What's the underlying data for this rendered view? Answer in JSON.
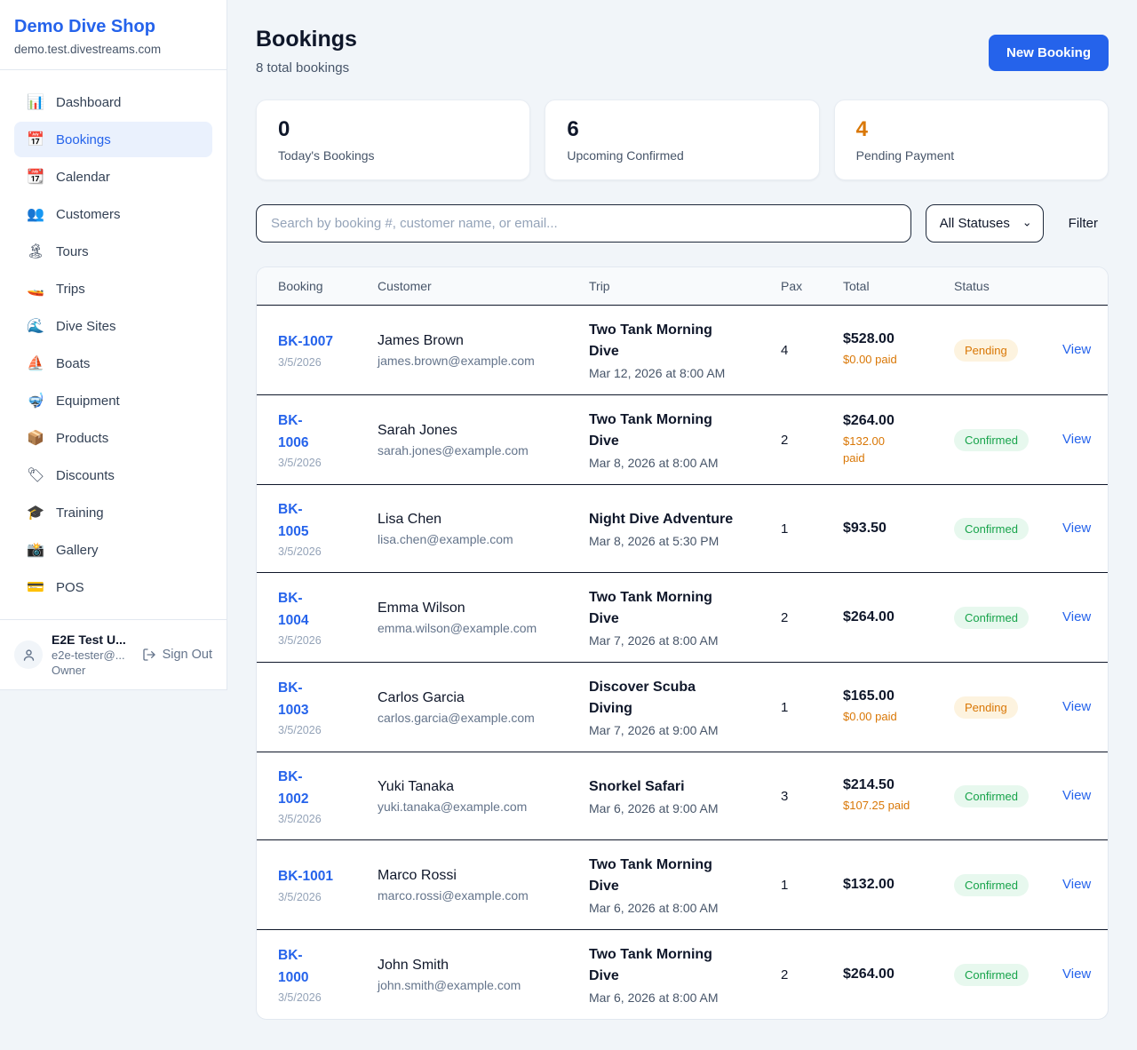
{
  "colors": {
    "accent_blue": "#2563eb",
    "pending_orange": "#d97706",
    "confirmed_green": "#16a34a",
    "page_background": "#f1f5f9"
  },
  "sidebar": {
    "brand": {
      "name": "Demo Dive Shop",
      "domain": "demo.test.divestreams.com"
    },
    "nav": [
      {
        "label": "Dashboard",
        "icon": "📊",
        "active": false
      },
      {
        "label": "Bookings",
        "icon": "📅",
        "active": true
      },
      {
        "label": "Calendar",
        "icon": "📆",
        "active": false
      },
      {
        "label": "Customers",
        "icon": "👥",
        "active": false
      },
      {
        "label": "Tours",
        "icon": "🏝",
        "active": false
      },
      {
        "label": "Trips",
        "icon": "🚤",
        "active": false
      },
      {
        "label": "Dive Sites",
        "icon": "🌊",
        "active": false
      },
      {
        "label": "Boats",
        "icon": "⛵",
        "active": false
      },
      {
        "label": "Equipment",
        "icon": "🤿",
        "active": false
      },
      {
        "label": "Products",
        "icon": "📦",
        "active": false
      },
      {
        "label": "Discounts",
        "icon": "🏷",
        "active": false
      },
      {
        "label": "Training",
        "icon": "🎓",
        "active": false
      },
      {
        "label": "Gallery",
        "icon": "📸",
        "active": false
      },
      {
        "label": "POS",
        "icon": "💳",
        "active": false
      }
    ],
    "user": {
      "name": "E2E Test U...",
      "email": "e2e-tester@...",
      "role": "Owner",
      "sign_out_label": "Sign Out"
    }
  },
  "header": {
    "title": "Bookings",
    "subtitle": "8 total bookings",
    "new_booking_label": "New Booking"
  },
  "stats": [
    {
      "value": "0",
      "label": "Today's Bookings",
      "accent": false
    },
    {
      "value": "6",
      "label": "Upcoming Confirmed",
      "accent": false
    },
    {
      "value": "4",
      "label": "Pending Payment",
      "accent": true
    }
  ],
  "filters": {
    "search_placeholder": "Search by booking #, customer name, or email...",
    "status_selected": "All Statuses",
    "filter_label": "Filter"
  },
  "table": {
    "columns": {
      "booking": "Booking",
      "customer": "Customer",
      "trip": "Trip",
      "pax": "Pax",
      "total": "Total",
      "status": "Status"
    },
    "view_label": "View",
    "rows": [
      {
        "id": "BK-1007",
        "id_wrapped": false,
        "date": "3/5/2026",
        "customer": "James Brown",
        "email": "james.brown@example.com",
        "trip": "Two Tank Morning Dive",
        "trip_datetime": "Mar 12, 2026 at 8:00 AM",
        "pax": "4",
        "total": "$528.00",
        "paid": "$0.00 paid",
        "paid_wrapped": false,
        "status": "Pending"
      },
      {
        "id": "BK-1006",
        "id_wrapped": true,
        "date": "3/5/2026",
        "customer": "Sarah Jones",
        "email": "sarah.jones@example.com",
        "trip": "Two Tank Morning Dive",
        "trip_datetime": "Mar 8, 2026 at 8:00 AM",
        "pax": "2",
        "total": "$264.00",
        "paid": "$132.00 paid",
        "paid_wrapped": true,
        "status": "Confirmed"
      },
      {
        "id": "BK-1005",
        "id_wrapped": true,
        "date": "3/5/2026",
        "customer": "Lisa Chen",
        "email": "lisa.chen@example.com",
        "trip": "Night Dive Adventure",
        "trip_datetime": "Mar 8, 2026 at 5:30 PM",
        "pax": "1",
        "total": "$93.50",
        "paid": null,
        "paid_wrapped": false,
        "status": "Confirmed"
      },
      {
        "id": "BK-1004",
        "id_wrapped": true,
        "date": "3/5/2026",
        "customer": "Emma Wilson",
        "email": "emma.wilson@example.com",
        "trip": "Two Tank Morning Dive",
        "trip_datetime": "Mar 7, 2026 at 8:00 AM",
        "pax": "2",
        "total": "$264.00",
        "paid": null,
        "paid_wrapped": false,
        "status": "Confirmed"
      },
      {
        "id": "BK-1003",
        "id_wrapped": true,
        "date": "3/5/2026",
        "customer": "Carlos Garcia",
        "email": "carlos.garcia@example.com",
        "trip": "Discover Scuba Diving",
        "trip_datetime": "Mar 7, 2026 at 9:00 AM",
        "pax": "1",
        "total": "$165.00",
        "paid": "$0.00 paid",
        "paid_wrapped": false,
        "status": "Pending"
      },
      {
        "id": "BK-1002",
        "id_wrapped": true,
        "date": "3/5/2026",
        "customer": "Yuki Tanaka",
        "email": "yuki.tanaka@example.com",
        "trip": "Snorkel Safari",
        "trip_datetime": "Mar 6, 2026 at 9:00 AM",
        "pax": "3",
        "total": "$214.50",
        "paid": "$107.25 paid",
        "paid_wrapped": false,
        "status": "Confirmed"
      },
      {
        "id": "BK-1001",
        "id_wrapped": false,
        "date": "3/5/2026",
        "customer": "Marco Rossi",
        "email": "marco.rossi@example.com",
        "trip": "Two Tank Morning Dive",
        "trip_datetime": "Mar 6, 2026 at 8:00 AM",
        "pax": "1",
        "total": "$132.00",
        "paid": null,
        "paid_wrapped": false,
        "status": "Confirmed"
      },
      {
        "id": "BK-1000",
        "id_wrapped": true,
        "date": "3/5/2026",
        "customer": "John Smith",
        "email": "john.smith@example.com",
        "trip": "Two Tank Morning Dive",
        "trip_datetime": "Mar 6, 2026 at 8:00 AM",
        "pax": "2",
        "total": "$264.00",
        "paid": null,
        "paid_wrapped": false,
        "status": "Confirmed"
      }
    ]
  }
}
